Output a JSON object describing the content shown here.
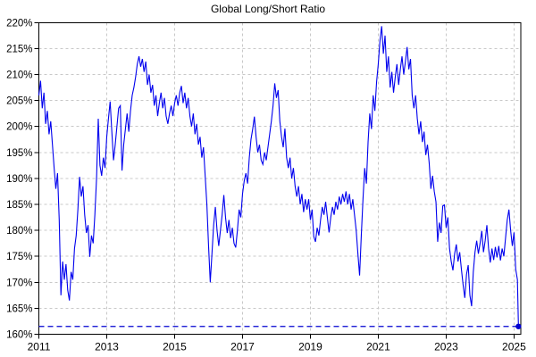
{
  "chart_data": {
    "type": "line",
    "title": "Global Long/Short Ratio",
    "xlabel": "",
    "ylabel": "",
    "ylim": [
      160,
      220
    ],
    "xlim": [
      2011,
      2025.2
    ],
    "grid": "dashed",
    "legend_position": "none",
    "y_ticks": [
      220,
      215,
      210,
      205,
      200,
      195,
      190,
      185,
      180,
      175,
      170,
      165,
      160
    ],
    "y_tick_labels": [
      "220%",
      "215%",
      "210%",
      "205%",
      "200%",
      "195%",
      "190%",
      "185%",
      "180%",
      "175%",
      "170%",
      "165%",
      "160%"
    ],
    "x_ticks": [
      2011,
      2013,
      2015,
      2017,
      2019,
      2021,
      2023,
      2025
    ],
    "x_tick_labels": [
      "2011",
      "2013",
      "2015",
      "2017",
      "2019",
      "2021",
      "2023",
      "2025"
    ],
    "x_gridline_years": [
      2013,
      2015,
      2017,
      2019,
      2021,
      2023,
      2025
    ],
    "reference_line": {
      "y": 161.5,
      "style": "dashed",
      "color": "#0000d0",
      "end_marker": "dot"
    },
    "series": [
      {
        "color": "#0000ee",
        "x_start": 2011.0,
        "x_step": 0.05,
        "values": [
          206.0,
          208.8,
          203.5,
          206.5,
          200.5,
          203.0,
          198.5,
          201.0,
          196.5,
          192.0,
          188.0,
          191.0,
          182.0,
          167.5,
          174.0,
          170.5,
          173.5,
          168.5,
          166.5,
          172.0,
          170.5,
          176.5,
          179.0,
          184.0,
          190.3,
          186.5,
          188.5,
          183.0,
          179.5,
          181.0,
          174.9,
          179.0,
          177.5,
          183.0,
          190.0,
          201.5,
          192.5,
          190.5,
          194.0,
          192.0,
          198.0,
          201.5,
          204.8,
          199.0,
          193.5,
          196.5,
          200.0,
          203.5,
          204.0,
          191.5,
          196.5,
          199.5,
          202.5,
          199.0,
          203.0,
          206.0,
          207.5,
          209.5,
          212.0,
          213.5,
          211.5,
          213.0,
          210.5,
          212.5,
          208.0,
          210.0,
          206.5,
          208.0,
          204.0,
          206.0,
          202.0,
          204.5,
          206.5,
          203.5,
          205.5,
          202.0,
          200.5,
          202.5,
          204.0,
          202.0,
          204.5,
          206.0,
          204.0,
          206.5,
          207.8,
          204.5,
          206.5,
          203.5,
          205.5,
          202.0,
          200.0,
          202.5,
          198.5,
          200.5,
          196.5,
          198.0,
          194.0,
          196.0,
          190.5,
          185.0,
          177.0,
          170.0,
          175.5,
          181.0,
          184.5,
          180.0,
          177.0,
          180.0,
          183.0,
          186.8,
          182.5,
          179.5,
          182.0,
          178.5,
          180.5,
          177.5,
          176.7,
          180.0,
          184.0,
          182.5,
          187.0,
          189.5,
          191.0,
          189.0,
          194.0,
          197.5,
          199.5,
          201.9,
          198.0,
          195.0,
          196.5,
          193.5,
          192.7,
          195.0,
          193.5,
          196.0,
          198.5,
          201.0,
          204.0,
          208.3,
          205.5,
          207.0,
          201.0,
          198.0,
          196.0,
          199.6,
          194.0,
          192.0,
          194.0,
          190.0,
          192.0,
          188.5,
          186.5,
          188.5,
          185.0,
          187.0,
          183.5,
          186.0,
          184.0,
          186.0,
          182.0,
          184.0,
          178.8,
          177.8,
          180.5,
          179.0,
          182.0,
          184.5,
          183.0,
          185.5,
          182.5,
          179.6,
          182.5,
          184.5,
          183.0,
          185.5,
          184.0,
          186.5,
          185.0,
          187.0,
          185.5,
          187.5,
          185.0,
          187.0,
          184.0,
          186.0,
          183.0,
          180.0,
          175.5,
          171.3,
          179.0,
          186.0,
          192.0,
          189.0,
          197.0,
          202.5,
          199.5,
          206.0,
          203.0,
          208.5,
          212.0,
          216.5,
          219.3,
          214.0,
          217.5,
          210.5,
          213.5,
          207.5,
          210.5,
          206.5,
          209.5,
          212.0,
          208.0,
          211.0,
          213.5,
          210.0,
          212.5,
          215.3,
          211.0,
          213.0,
          206.0,
          203.5,
          206.0,
          201.5,
          198.5,
          201.0,
          197.0,
          199.0,
          194.5,
          196.5,
          193.0,
          188.0,
          190.5,
          187.5,
          185.5,
          177.8,
          181.5,
          179.5,
          184.7,
          184.9,
          180.5,
          182.5,
          176.5,
          174.0,
          172.3,
          175.5,
          177.3,
          174.0,
          175.8,
          172.5,
          169.5,
          167.0,
          171.5,
          173.3,
          167.5,
          165.4,
          172.0,
          175.8,
          178.0,
          175.5,
          177.5,
          179.9,
          175.8,
          178.0,
          181.0,
          176.5,
          173.8,
          176.5,
          174.3,
          176.8,
          174.8,
          177.0,
          174.2,
          176.5,
          175.0,
          178.5,
          182.0,
          184.0,
          180.0,
          177.0,
          179.6,
          172.5,
          170.5
        ],
        "final_point": {
          "x": 2025.13,
          "y": 161.5
        }
      }
    ],
    "colors": {
      "line": "#0000ee",
      "reference_line": "#0000d0",
      "grid": "#c8c8c8",
      "axis": "#000000",
      "background": "#ffffff"
    }
  }
}
